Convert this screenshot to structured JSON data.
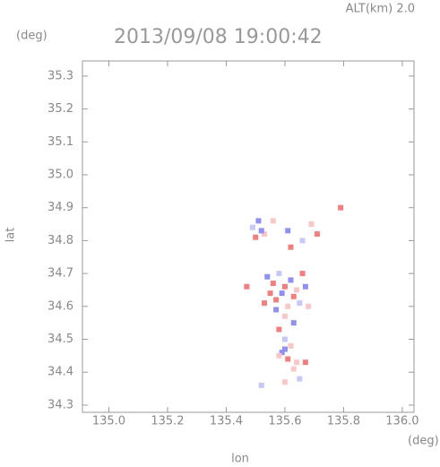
{
  "chart_data": {
    "type": "scatter",
    "title": "2013/09/08 19:00:42",
    "subtitle": "ALT(km) 2.0",
    "y_unit": "(deg)",
    "x_unit": "(deg)",
    "x_label": "lon",
    "y_label": "lat",
    "xlim": [
      134.91,
      136.04
    ],
    "ylim": [
      34.278,
      35.346
    ],
    "xticks": [
      {
        "value": 135.0,
        "label": "135.0"
      },
      135.2,
      135.4,
      135.6,
      135.8,
      {
        "value": 136.0,
        "label": "136.0"
      }
    ],
    "yticks": [
      34.3,
      34.4,
      34.5,
      34.6,
      34.7,
      34.8,
      34.9,
      {
        "value": 35.0,
        "label": "35.0"
      },
      35.1,
      35.2,
      35.3
    ],
    "x": [
      135.49,
      135.51,
      135.53,
      135.5,
      135.52,
      135.56,
      135.61,
      135.62,
      135.66,
      135.69,
      135.79,
      135.71,
      135.54,
      135.56,
      135.58,
      135.6,
      135.62,
      135.64,
      135.66,
      135.57,
      135.59,
      135.61,
      135.63,
      135.65,
      135.55,
      135.6,
      135.63,
      135.58,
      135.6,
      135.62,
      135.59,
      135.61,
      135.58,
      135.6,
      135.64,
      135.67,
      135.63,
      135.65,
      135.6,
      135.52,
      135.47,
      135.57,
      135.68,
      135.53,
      135.67
    ],
    "values": [
      34.84,
      34.86,
      34.82,
      34.81,
      34.83,
      34.86,
      34.83,
      34.78,
      34.8,
      34.85,
      34.9,
      34.82,
      34.69,
      34.67,
      34.7,
      34.66,
      34.68,
      34.65,
      34.7,
      34.62,
      34.64,
      34.6,
      34.63,
      34.61,
      34.64,
      34.57,
      34.55,
      34.53,
      34.5,
      34.48,
      34.46,
      34.44,
      34.45,
      34.47,
      34.43,
      34.43,
      34.41,
      34.38,
      34.37,
      34.36,
      34.66,
      34.59,
      34.6,
      34.61,
      34.66
    ],
    "colors": [
      "#c8c8f8",
      "#9090f0",
      "#f8c8c8",
      "#f08080",
      "#9090f0",
      "#f8c8c8",
      "#9090f0",
      "#f08080",
      "#c8c8f8",
      "#f8c8c8",
      "#f08080",
      "#f08080",
      "#9090f0",
      "#f08080",
      "#c8c8f8",
      "#f08080",
      "#9090f0",
      "#f8c8c8",
      "#f08080",
      "#f08080",
      "#9090f0",
      "#f8c8c8",
      "#f08080",
      "#c8c8f8",
      "#f08080",
      "#f8c8c8",
      "#9090f0",
      "#f08080",
      "#c8c8f8",
      "#f8c8c8",
      "#9090f0",
      "#f08080",
      "#f8c8c8",
      "#9090f0",
      "#f8c8c8",
      "#f08080",
      "#f8c8c8",
      "#c8c8f8",
      "#f8c8c8",
      "#c8c8f8",
      "#f08080",
      "#9090f0",
      "#f8c8c8",
      "#f08080",
      "#9090f0"
    ]
  }
}
